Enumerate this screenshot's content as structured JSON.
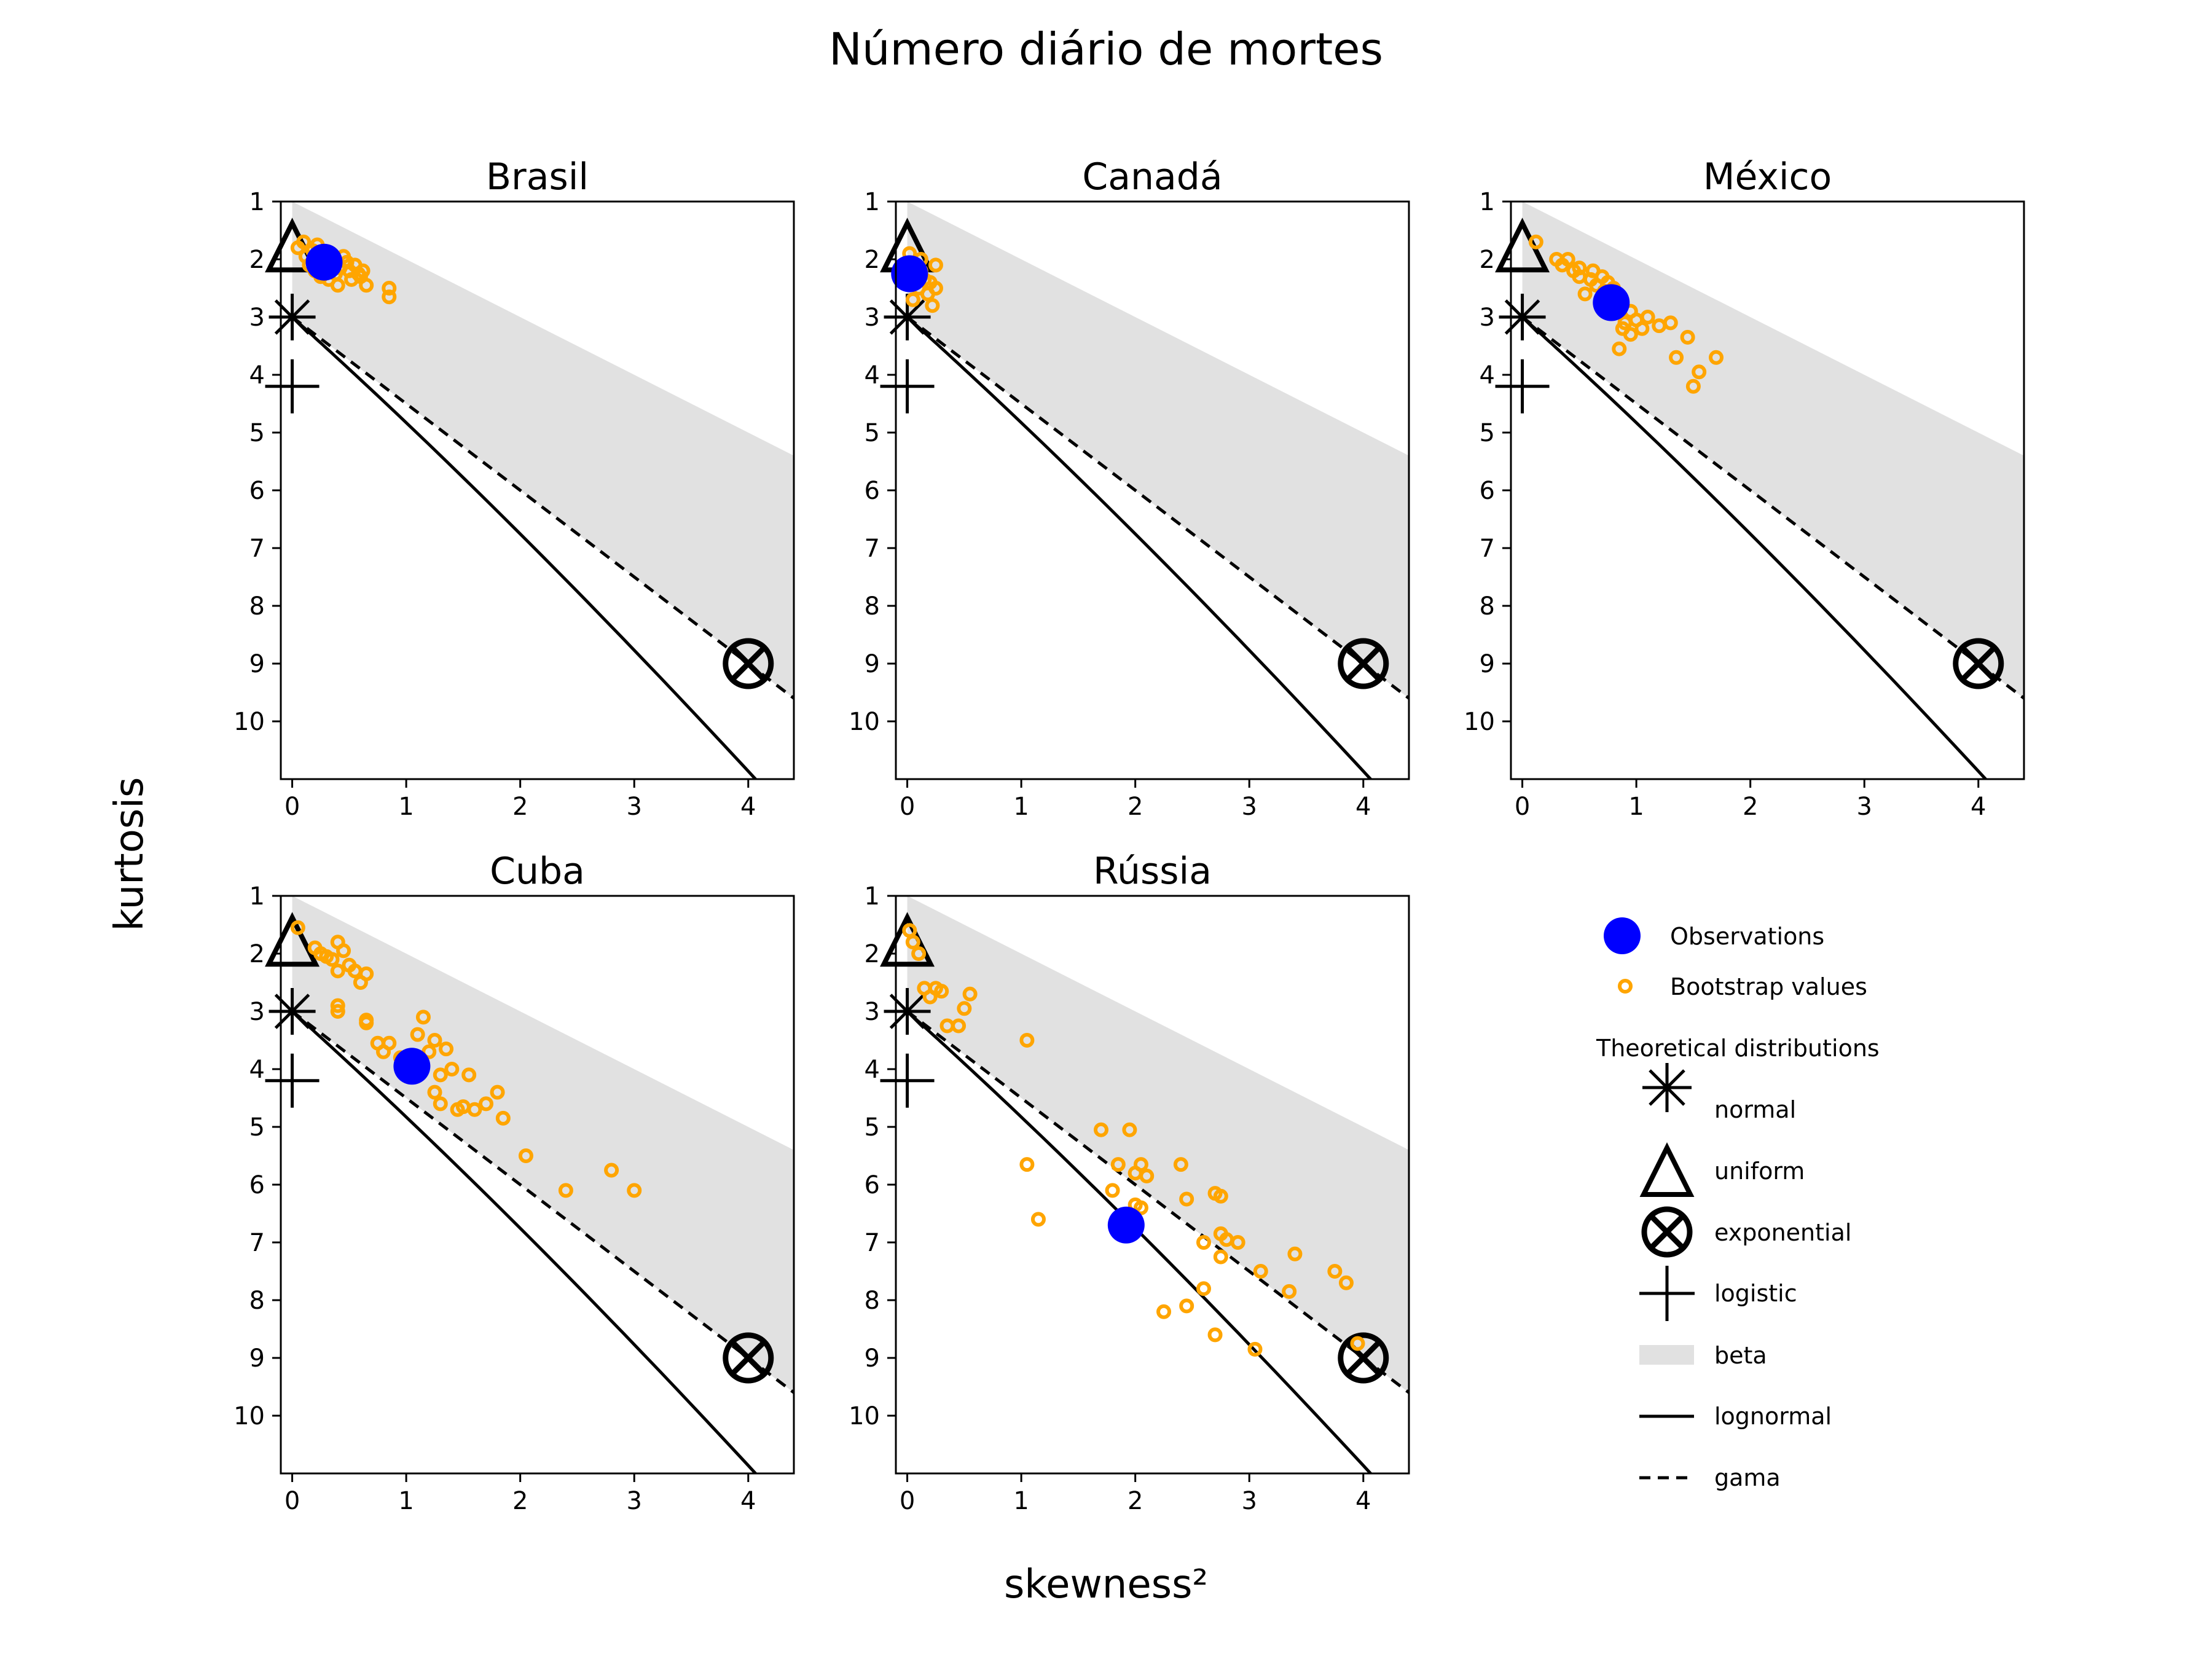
{
  "figure_title": "Número diário de mortes",
  "x_axis_label": "skewness²",
  "y_axis_label": "kurtosis",
  "legend": {
    "observations": "Observations",
    "bootstrap": "Bootstrap values",
    "theoretical_header": "Theoretical distributions",
    "normal": "normal",
    "uniform": "uniform",
    "exponential": "exponential",
    "logistic": "logistic",
    "beta": "beta",
    "lognormal": "lognormal",
    "gama": "gama"
  },
  "colors": {
    "observation": "#0000ff",
    "bootstrap": "#ffa500",
    "beta_region": "#e1e1e1",
    "lines": "#000000"
  },
  "chart_data": [
    {
      "type": "scatter",
      "title": "Brasil",
      "xlim": [
        -0.1,
        4.4
      ],
      "ylim": [
        11,
        1
      ],
      "xticks": [
        0,
        1,
        2,
        3,
        4
      ],
      "yticks": [
        1,
        2,
        3,
        4,
        5,
        6,
        7,
        8,
        9,
        10
      ],
      "observation": [
        0.28,
        2.05
      ],
      "bootstrap": [
        [
          0.05,
          1.8
        ],
        [
          0.1,
          1.7
        ],
        [
          0.12,
          1.95
        ],
        [
          0.15,
          2.1
        ],
        [
          0.18,
          1.85
        ],
        [
          0.2,
          2.2
        ],
        [
          0.22,
          1.75
        ],
        [
          0.25,
          2.3
        ],
        [
          0.3,
          2.0
        ],
        [
          0.32,
          2.35
        ],
        [
          0.35,
          2.1
        ],
        [
          0.38,
          2.25
        ],
        [
          0.4,
          2.45
        ],
        [
          0.42,
          2.15
        ],
        [
          0.45,
          1.95
        ],
        [
          0.48,
          2.05
        ],
        [
          0.5,
          2.2
        ],
        [
          0.52,
          2.35
        ],
        [
          0.55,
          2.1
        ],
        [
          0.58,
          2.25
        ],
        [
          0.6,
          2.3
        ],
        [
          0.62,
          2.2
        ],
        [
          0.65,
          2.45
        ],
        [
          0.85,
          2.5
        ],
        [
          0.85,
          2.65
        ]
      ]
    },
    {
      "type": "scatter",
      "title": "Canadá",
      "xlim": [
        -0.1,
        4.4
      ],
      "ylim": [
        11,
        1
      ],
      "xticks": [
        0,
        1,
        2,
        3,
        4
      ],
      "yticks": [
        1,
        2,
        3,
        4,
        5,
        6,
        7,
        8,
        9,
        10
      ],
      "observation": [
        0.02,
        2.25
      ],
      "bootstrap": [
        [
          0.02,
          1.9
        ],
        [
          0.05,
          2.1
        ],
        [
          0.08,
          2.3
        ],
        [
          0.1,
          2.5
        ],
        [
          0.12,
          2.0
        ],
        [
          0.15,
          2.35
        ],
        [
          0.18,
          2.6
        ],
        [
          0.2,
          2.4
        ],
        [
          0.22,
          2.8
        ],
        [
          0.25,
          2.1
        ],
        [
          0.25,
          2.5
        ],
        [
          0.05,
          2.7
        ],
        [
          0.12,
          2.2
        ]
      ]
    },
    {
      "type": "scatter",
      "title": "México",
      "xlim": [
        -0.1,
        4.4
      ],
      "ylim": [
        11,
        1
      ],
      "xticks": [
        0,
        1,
        2,
        3,
        4
      ],
      "yticks": [
        1,
        2,
        3,
        4,
        5,
        6,
        7,
        8,
        9,
        10
      ],
      "observation": [
        0.78,
        2.75
      ],
      "bootstrap": [
        [
          0.12,
          1.7
        ],
        [
          0.3,
          2.0
        ],
        [
          0.35,
          2.1
        ],
        [
          0.4,
          2.0
        ],
        [
          0.45,
          2.2
        ],
        [
          0.5,
          2.3
        ],
        [
          0.5,
          2.15
        ],
        [
          0.55,
          2.6
        ],
        [
          0.6,
          2.35
        ],
        [
          0.62,
          2.2
        ],
        [
          0.65,
          2.45
        ],
        [
          0.7,
          2.3
        ],
        [
          0.72,
          2.55
        ],
        [
          0.75,
          2.4
        ],
        [
          0.8,
          2.5
        ],
        [
          0.85,
          2.65
        ],
        [
          0.88,
          3.2
        ],
        [
          0.9,
          3.1
        ],
        [
          0.95,
          3.3
        ],
        [
          0.95,
          2.9
        ],
        [
          1.0,
          3.05
        ],
        [
          1.05,
          3.2
        ],
        [
          1.1,
          3.0
        ],
        [
          1.2,
          3.15
        ],
        [
          1.3,
          3.1
        ],
        [
          1.35,
          3.7
        ],
        [
          1.45,
          3.35
        ],
        [
          1.5,
          4.2
        ],
        [
          1.55,
          3.95
        ],
        [
          1.7,
          3.7
        ],
        [
          0.85,
          3.55
        ]
      ]
    },
    {
      "type": "scatter",
      "title": "Cuba",
      "xlim": [
        -0.1,
        4.4
      ],
      "ylim": [
        11,
        1
      ],
      "xticks": [
        0,
        1,
        2,
        3,
        4
      ],
      "yticks": [
        1,
        2,
        3,
        4,
        5,
        6,
        7,
        8,
        9,
        10
      ],
      "observation": [
        1.05,
        3.95
      ],
      "bootstrap": [
        [
          0.05,
          1.55
        ],
        [
          0.2,
          1.9
        ],
        [
          0.25,
          2.0
        ],
        [
          0.3,
          2.05
        ],
        [
          0.35,
          2.1
        ],
        [
          0.4,
          1.8
        ],
        [
          0.4,
          2.3
        ],
        [
          0.45,
          1.95
        ],
        [
          0.5,
          2.2
        ],
        [
          0.55,
          2.3
        ],
        [
          0.6,
          2.5
        ],
        [
          0.65,
          2.35
        ],
        [
          0.4,
          2.9
        ],
        [
          0.4,
          3.0
        ],
        [
          0.65,
          3.15
        ],
        [
          0.65,
          3.2
        ],
        [
          0.75,
          3.55
        ],
        [
          0.8,
          3.7
        ],
        [
          0.85,
          3.55
        ],
        [
          0.95,
          3.8
        ],
        [
          1.1,
          3.4
        ],
        [
          1.15,
          3.1
        ],
        [
          1.2,
          3.7
        ],
        [
          1.25,
          3.5
        ],
        [
          1.25,
          4.4
        ],
        [
          1.3,
          4.1
        ],
        [
          1.3,
          4.6
        ],
        [
          1.35,
          3.65
        ],
        [
          1.4,
          4.0
        ],
        [
          1.45,
          4.7
        ],
        [
          1.5,
          4.65
        ],
        [
          1.55,
          4.1
        ],
        [
          1.6,
          4.7
        ],
        [
          1.7,
          4.6
        ],
        [
          1.8,
          4.4
        ],
        [
          1.85,
          4.85
        ],
        [
          2.05,
          5.5
        ],
        [
          2.4,
          6.1
        ],
        [
          2.8,
          5.75
        ],
        [
          3.0,
          6.1
        ]
      ]
    },
    {
      "type": "scatter",
      "title": "Rússia",
      "xlim": [
        -0.1,
        4.4
      ],
      "ylim": [
        11,
        1
      ],
      "xticks": [
        0,
        1,
        2,
        3,
        4
      ],
      "yticks": [
        1,
        2,
        3,
        4,
        5,
        6,
        7,
        8,
        9,
        10
      ],
      "observation": [
        1.92,
        6.7
      ],
      "bootstrap": [
        [
          0.02,
          1.6
        ],
        [
          0.05,
          1.8
        ],
        [
          0.1,
          2.0
        ],
        [
          0.15,
          2.6
        ],
        [
          0.2,
          2.75
        ],
        [
          0.25,
          2.6
        ],
        [
          0.3,
          2.65
        ],
        [
          0.35,
          3.25
        ],
        [
          0.45,
          3.25
        ],
        [
          0.5,
          2.95
        ],
        [
          0.55,
          2.7
        ],
        [
          1.05,
          3.5
        ],
        [
          1.05,
          5.65
        ],
        [
          1.15,
          6.6
        ],
        [
          1.7,
          5.05
        ],
        [
          1.8,
          6.1
        ],
        [
          1.85,
          5.65
        ],
        [
          1.95,
          5.05
        ],
        [
          2.0,
          5.8
        ],
        [
          2.05,
          5.65
        ],
        [
          2.1,
          5.85
        ],
        [
          2.0,
          6.35
        ],
        [
          2.05,
          6.4
        ],
        [
          2.25,
          8.2
        ],
        [
          2.4,
          5.65
        ],
        [
          2.45,
          6.25
        ],
        [
          2.45,
          8.1
        ],
        [
          2.6,
          7.8
        ],
        [
          2.6,
          7.0
        ],
        [
          2.7,
          6.15
        ],
        [
          2.75,
          6.2
        ],
        [
          2.75,
          6.85
        ],
        [
          2.8,
          6.95
        ],
        [
          2.75,
          7.25
        ],
        [
          2.9,
          7.0
        ],
        [
          2.7,
          8.6
        ],
        [
          3.05,
          8.85
        ],
        [
          3.1,
          7.5
        ],
        [
          3.35,
          7.85
        ],
        [
          3.4,
          7.2
        ],
        [
          3.75,
          7.5
        ],
        [
          3.85,
          7.7
        ],
        [
          3.95,
          8.75
        ]
      ]
    }
  ]
}
